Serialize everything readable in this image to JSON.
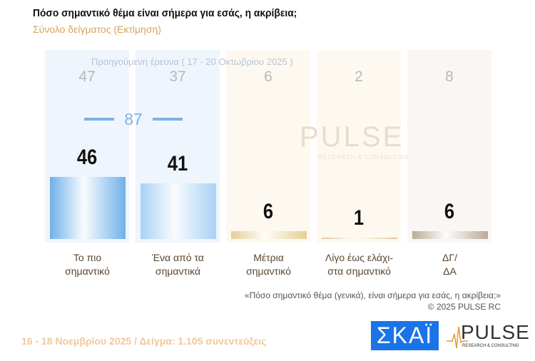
{
  "header": {
    "title": "Πόσο σημαντικό θέμα είναι σήμερα για εσάς, η ακρίβεια;",
    "subtitle": "Σύνολο δείγματος   (Εκτίμηση)"
  },
  "chart_data": {
    "type": "bar",
    "title": "Πόσο σημαντικό θέμα είναι σήμερα για εσάς, η ακρίβεια;",
    "categories": [
      "Το πιο σημαντικό",
      "Ένα από τα σημαντικά",
      "Μέτρια σημαντικό",
      "Λίγο έως ελάχι-στα σημαντικό",
      "ΔΓ/ ΔΑ"
    ],
    "category_lines": [
      [
        "Το πιο",
        "σημαντικό"
      ],
      [
        "Ένα από τα",
        "σημαντικά"
      ],
      [
        "Μέτρια",
        "σημαντικό"
      ],
      [
        "Λίγο έως ελάχι-",
        "στα σημαντικό"
      ],
      [
        "ΔΓ/",
        "ΔΑ"
      ]
    ],
    "series": [
      {
        "name": "16 - 18 Νοεμβρίου 2025",
        "values": [
          46,
          41,
          6,
          1,
          6
        ]
      },
      {
        "name": "Προηγούμενη έρευνα ( 17 - 20 Οκτωβρίου 2025 )",
        "values": [
          47,
          37,
          6,
          2,
          8
        ]
      }
    ],
    "sum_first_two": "87",
    "previous_label": "Προηγούμενη έρευνα ( 17 - 20 Οκτωβρίου 2025 )",
    "ylim": [
      0,
      50
    ],
    "colors": {
      "bar": [
        "#6fb0ea",
        "#a9d1f5",
        "#e6cf96",
        "#e2c89a",
        "#b9ab97"
      ],
      "bg": [
        "#eef5fc",
        "#eef5fc",
        "#fdf9f1",
        "#fdf9f1",
        "#faf6f3"
      ]
    }
  },
  "watermark": {
    "brand": "PULSE",
    "tagline": "RESEARCH & CONSULTING"
  },
  "footer": {
    "question": "«Πόσο σημαντικό θέμα (γενικά), είναι σήμερα για εσάς, η ακρίβεια;»",
    "copyright": "©  2025  PULSE RC",
    "date_sample": "16 - 18 Νοεμβρίου 2025  /  Δείγμα:  1.105 συνεντεύξεις",
    "skai_logo": "ΣΚΑΪ",
    "pulse_logo": "PULSE",
    "pulse_tagline": "RESEARCH & CONSULTING"
  }
}
